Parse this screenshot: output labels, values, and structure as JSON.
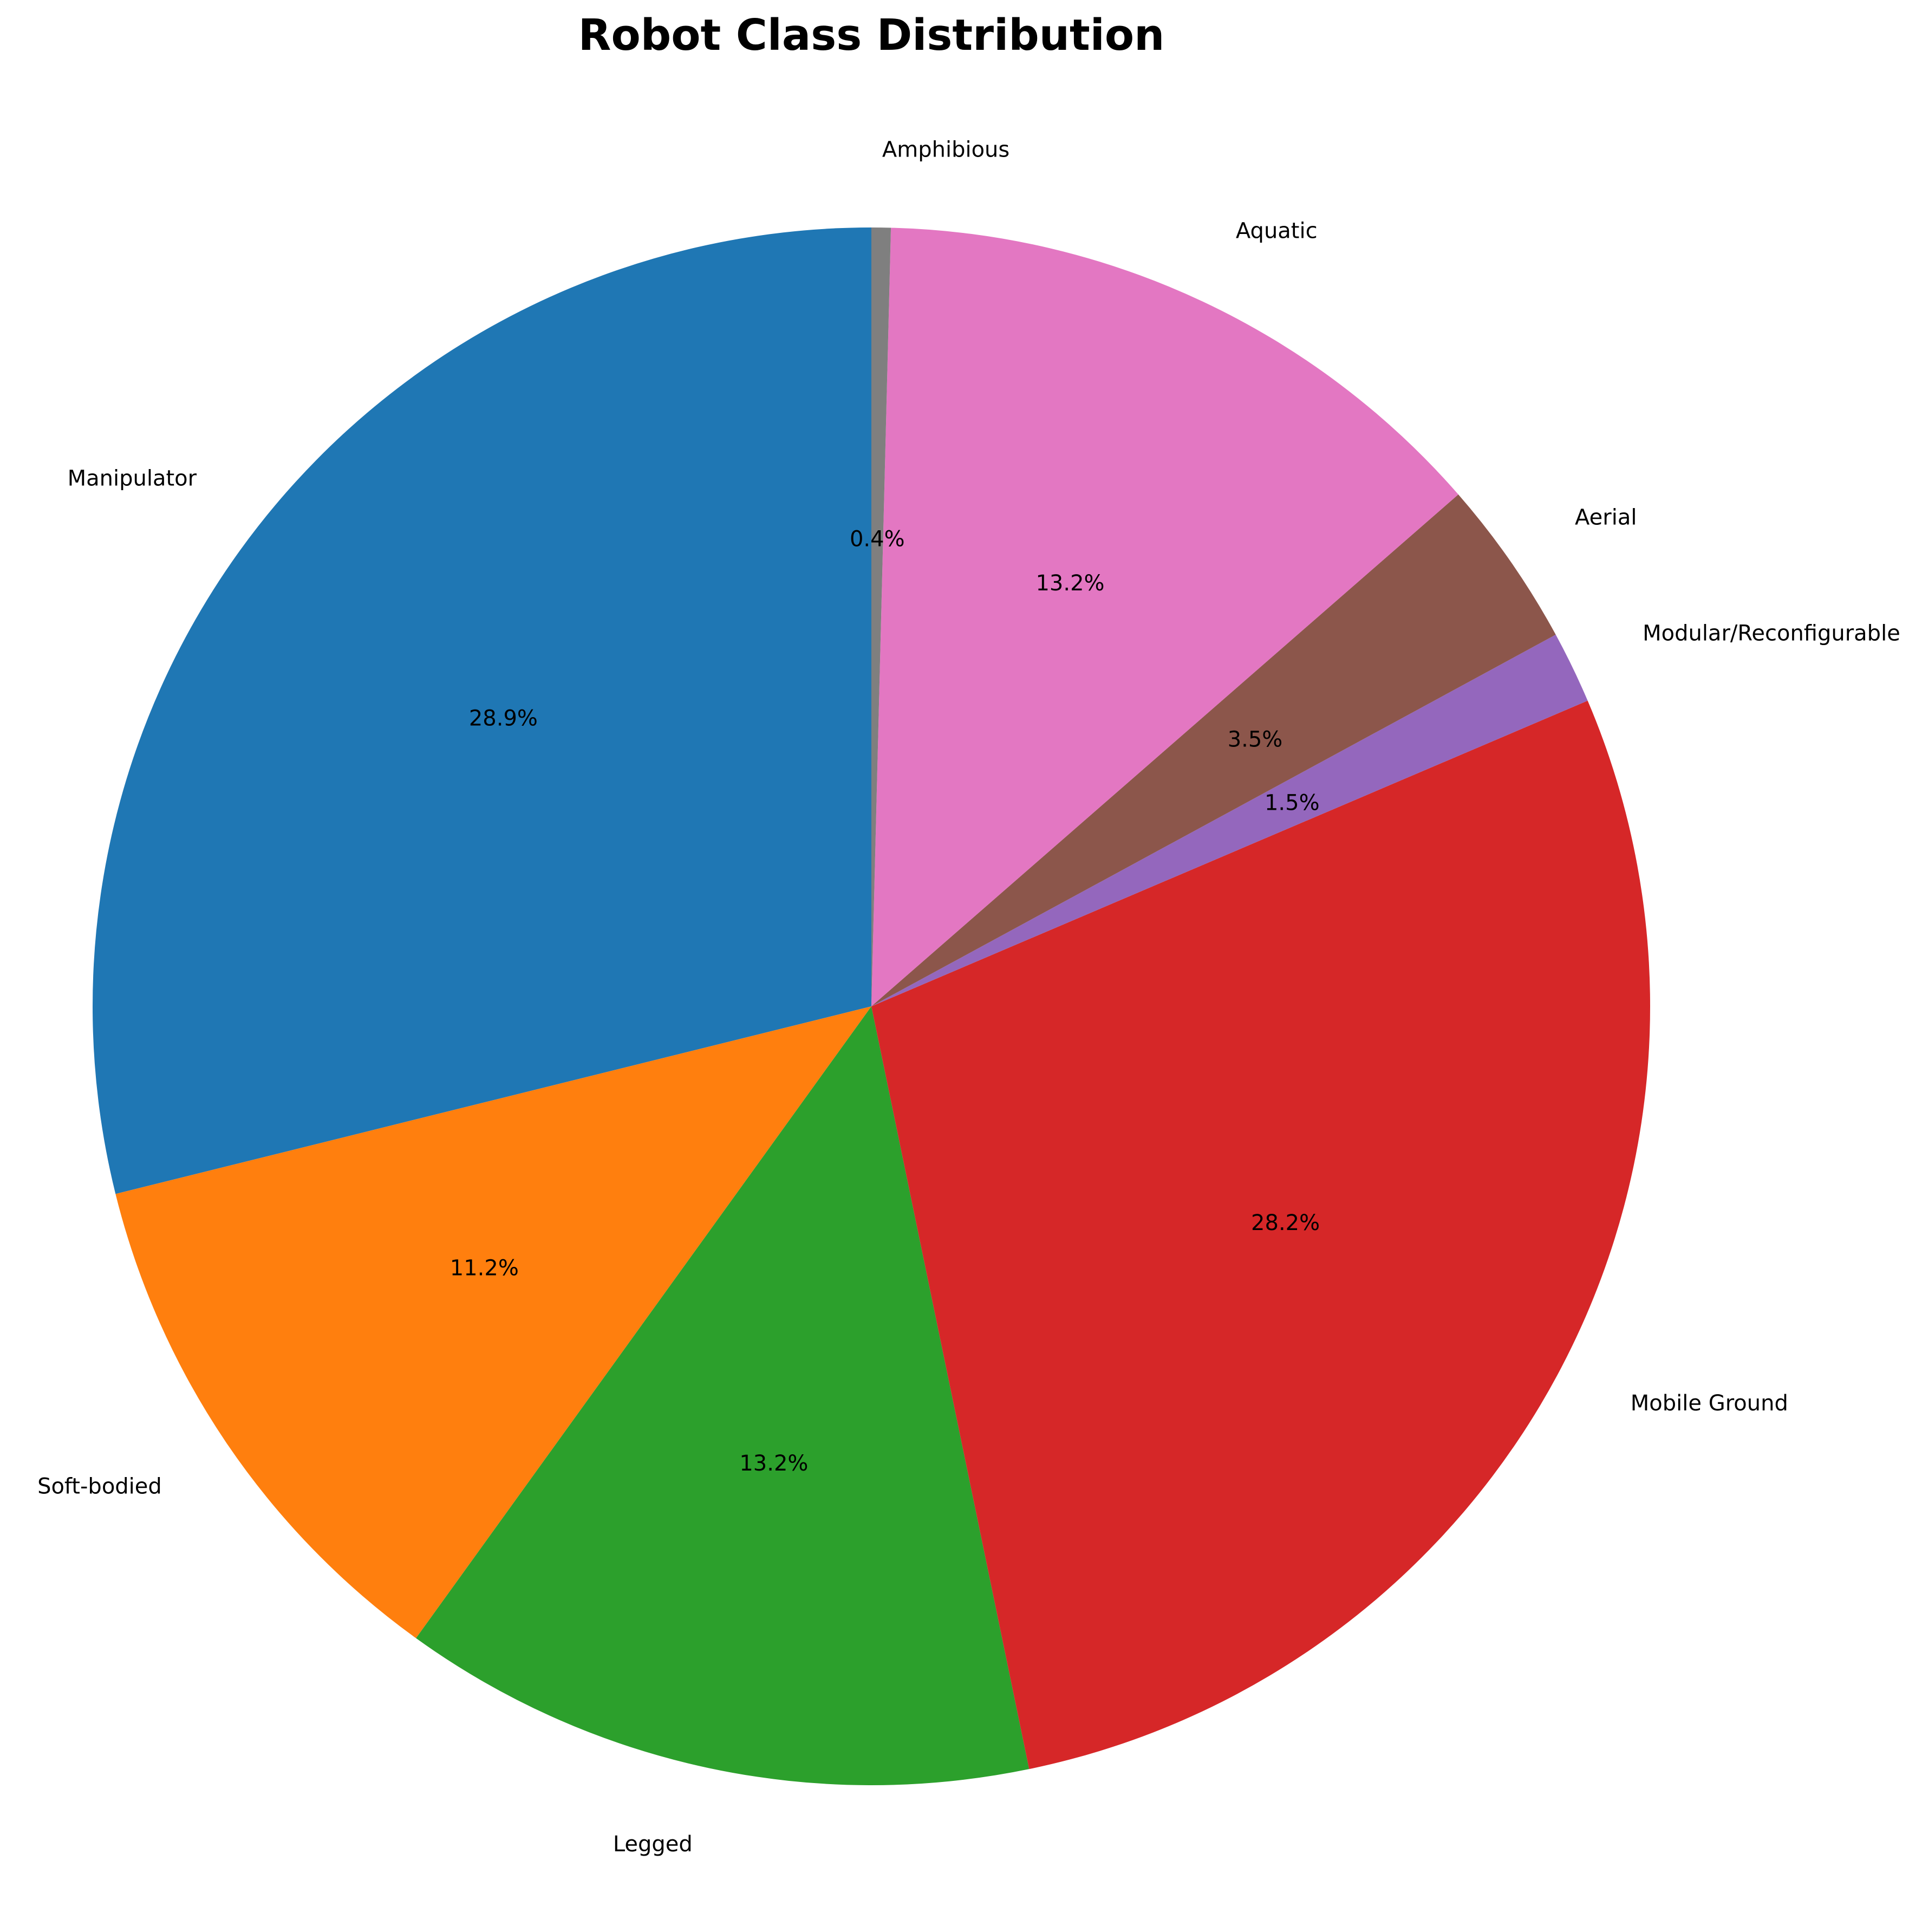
{
  "chart_data": {
    "type": "pie",
    "title": "Robot Class Distribution",
    "start_angle_deg": 90,
    "direction": "counterclockwise",
    "categories": [
      "Manipulator",
      "Soft-bodied",
      "Legged",
      "Mobile Ground",
      "Modular/Reconfigurable",
      "Aerial",
      "Aquatic",
      "Amphibious"
    ],
    "values": [
      28.9,
      11.2,
      13.2,
      28.2,
      1.5,
      3.5,
      13.2,
      0.4
    ],
    "value_labels": [
      "28.9%",
      "11.2%",
      "13.2%",
      "28.2%",
      "1.5%",
      "3.5%",
      "13.2%",
      "0.4%"
    ],
    "colors": [
      "#1f77b4",
      "#ff7f0e",
      "#2ca02c",
      "#d62728",
      "#9467bd",
      "#8c564b",
      "#e377c2",
      "#7f7f7f"
    ],
    "legend": "none",
    "grid": false
  }
}
